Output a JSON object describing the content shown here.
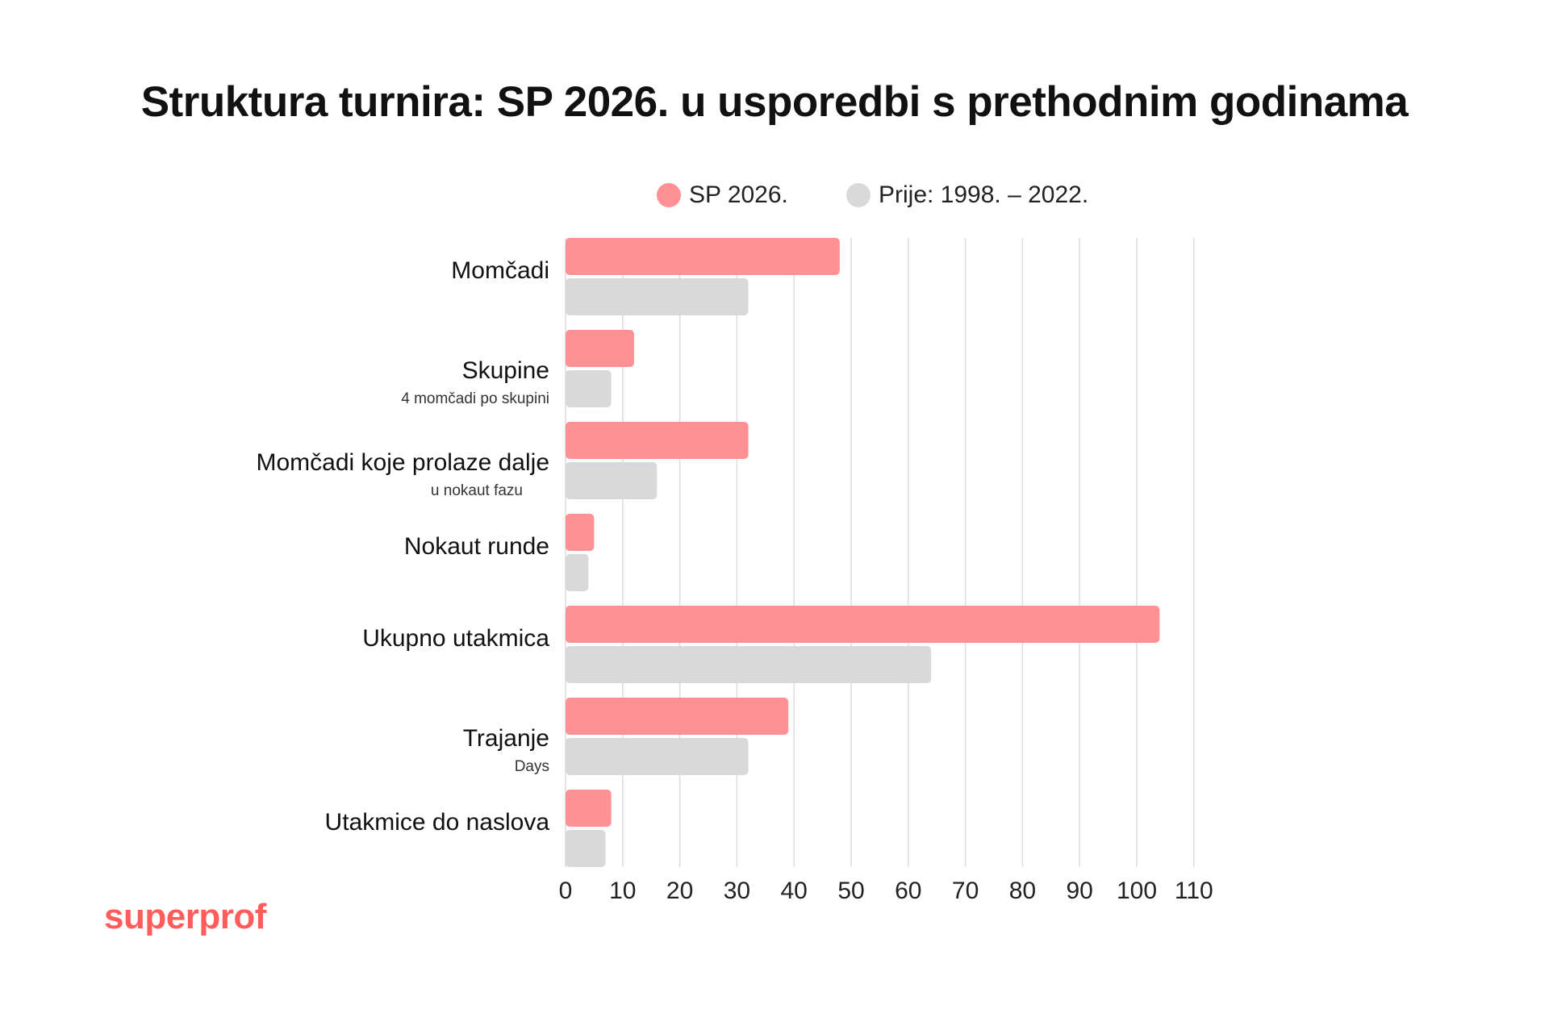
{
  "title": "Struktura turnira: SP 2026. u usporedbi s prethodnim godinama",
  "brand": {
    "name": "superprof"
  },
  "colors": {
    "sp2026": "#ff9194",
    "before": "#d9d9d9",
    "grid": "#dcdcdc",
    "brand": "#ff5c5c",
    "text": "#111111"
  },
  "chart_data": {
    "type": "bar",
    "orientation": "horizontal",
    "categories": [
      "Momčadi",
      "Skupine",
      "Momčadi koje prolaze dalje",
      "Nokaut runde",
      "Ukupno utakmica",
      "Trajanje",
      "Utakmice do naslova"
    ],
    "sublabels": [
      "",
      "4 momčadi po skupini",
      "u nokaut fazu",
      "",
      "",
      "Days",
      ""
    ],
    "series": [
      {
        "name": "SP 2026.",
        "color": "#ff9194",
        "values": [
          48,
          12,
          32,
          5,
          104,
          39,
          8
        ]
      },
      {
        "name": "Prije: 1998. – 2022.",
        "color": "#d9d9d9",
        "values": [
          32,
          8,
          16,
          4,
          64,
          32,
          7
        ]
      }
    ],
    "xlim": [
      0,
      110
    ],
    "xticks": [
      0,
      10,
      20,
      30,
      40,
      50,
      60,
      70,
      80,
      90,
      100,
      110
    ],
    "grid": true,
    "legend_position": "top"
  }
}
